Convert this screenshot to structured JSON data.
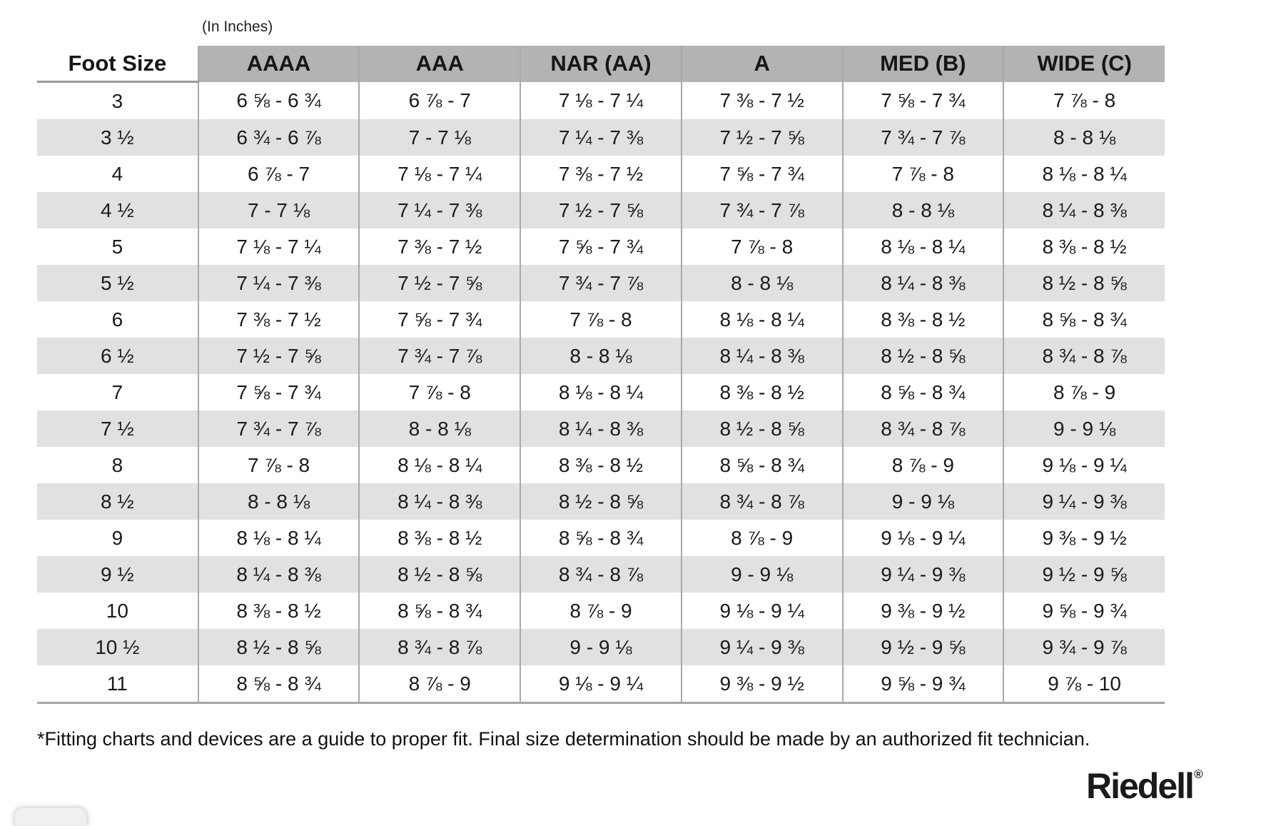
{
  "page": {
    "units_label": "(In Inches)",
    "footnote": "*Fitting charts and devices are a guide to proper fit. Final size determination should be made by an authorized fit technician.",
    "brand": {
      "name": "Riedell",
      "registered_mark": "®"
    }
  },
  "colors": {
    "header_bg": "#b3b3b3",
    "stripe_bg": "#e1e1e1",
    "column_border": "#a9a9a9",
    "rule": "#9a9a9a",
    "text": "#1a1a1a"
  },
  "table": {
    "columns": [
      "Foot Size",
      "AAAA",
      "AAA",
      "NAR (AA)",
      "A",
      "MED (B)",
      "WIDE (C)"
    ],
    "rows": [
      {
        "size": "3",
        "values": [
          "6 ⅝ - 6 ¾",
          "6 ⅞ - 7",
          "7 ⅛ - 7 ¼",
          "7 ⅜ - 7 ½",
          "7 ⅝ - 7 ¾",
          "7 ⅞ - 8"
        ]
      },
      {
        "size": "3 ½",
        "values": [
          "6 ¾ - 6 ⅞",
          "7 - 7 ⅛",
          "7 ¼ - 7 ⅜",
          "7 ½ - 7 ⅝",
          "7 ¾ - 7 ⅞",
          "8 - 8 ⅛"
        ]
      },
      {
        "size": "4",
        "values": [
          "6 ⅞ - 7",
          "7 ⅛ - 7 ¼",
          "7 ⅜ - 7 ½",
          "7 ⅝ - 7 ¾",
          "7 ⅞ - 8",
          "8 ⅛ - 8 ¼"
        ]
      },
      {
        "size": "4 ½",
        "values": [
          "7 - 7 ⅛",
          "7 ¼ - 7 ⅜",
          "7 ½ - 7 ⅝",
          "7 ¾ - 7 ⅞",
          "8 - 8 ⅛",
          "8 ¼ - 8 ⅜"
        ]
      },
      {
        "size": "5",
        "values": [
          "7 ⅛ - 7 ¼",
          "7 ⅜ - 7 ½",
          "7 ⅝ - 7 ¾",
          "7 ⅞ - 8",
          "8 ⅛ - 8 ¼",
          "8 ⅜ - 8 ½"
        ]
      },
      {
        "size": "5 ½",
        "values": [
          "7 ¼ - 7 ⅜",
          "7 ½ - 7 ⅝",
          "7 ¾ - 7 ⅞",
          "8 - 8 ⅛",
          "8 ¼ - 8 ⅜",
          "8 ½ - 8 ⅝"
        ]
      },
      {
        "size": "6",
        "values": [
          "7 ⅜ - 7 ½",
          "7 ⅝ - 7 ¾",
          "7 ⅞ - 8",
          "8 ⅛ - 8 ¼",
          "8 ⅜ - 8 ½",
          "8 ⅝ - 8 ¾"
        ]
      },
      {
        "size": "6 ½",
        "values": [
          "7 ½ - 7 ⅝",
          "7 ¾ - 7 ⅞",
          "8 - 8 ⅛",
          "8 ¼ - 8 ⅜",
          "8 ½ - 8 ⅝",
          "8 ¾ - 8 ⅞"
        ]
      },
      {
        "size": "7",
        "values": [
          "7 ⅝ - 7 ¾",
          "7 ⅞ - 8",
          "8 ⅛ - 8 ¼",
          "8 ⅜ - 8 ½",
          "8 ⅝ - 8 ¾",
          "8 ⅞ - 9"
        ]
      },
      {
        "size": "7 ½",
        "values": [
          "7 ¾ - 7 ⅞",
          "8 - 8 ⅛",
          "8 ¼ - 8 ⅜",
          "8 ½ - 8 ⅝",
          "8 ¾ - 8 ⅞",
          "9 - 9 ⅛"
        ]
      },
      {
        "size": "8",
        "values": [
          "7 ⅞ - 8",
          "8 ⅛ - 8 ¼",
          "8 ⅜ - 8 ½",
          "8 ⅝ - 8 ¾",
          "8 ⅞ - 9",
          "9 ⅛ - 9 ¼"
        ]
      },
      {
        "size": "8 ½",
        "values": [
          "8 - 8 ⅛",
          "8 ¼ - 8 ⅜",
          "8 ½ - 8 ⅝",
          "8 ¾ - 8 ⅞",
          "9 - 9 ⅛",
          "9 ¼ - 9 ⅜"
        ]
      },
      {
        "size": "9",
        "values": [
          "8 ⅛ - 8 ¼",
          "8 ⅜ - 8 ½",
          "8 ⅝ - 8 ¾",
          "8 ⅞ - 9",
          "9 ⅛ - 9 ¼",
          "9 ⅜ - 9 ½"
        ]
      },
      {
        "size": "9 ½",
        "values": [
          "8 ¼ - 8 ⅜",
          "8 ½ - 8 ⅝",
          "8 ¾ - 8 ⅞",
          "9 - 9 ⅛",
          "9 ¼ - 9 ⅜",
          "9 ½ - 9 ⅝"
        ]
      },
      {
        "size": "10",
        "values": [
          "8 ⅜ - 8 ½",
          "8 ⅝ - 8 ¾",
          "8 ⅞ - 9",
          "9 ⅛ - 9 ¼",
          "9 ⅜ - 9 ½",
          "9 ⅝ - 9 ¾"
        ]
      },
      {
        "size": "10 ½",
        "values": [
          "8 ½ - 8 ⅝",
          "8 ¾ - 8 ⅞",
          "9 - 9 ⅛",
          "9 ¼ - 9 ⅜",
          "9 ½ - 9 ⅝",
          "9 ¾ - 9 ⅞"
        ]
      },
      {
        "size": "11",
        "values": [
          "8 ⅝ - 8 ¾",
          "8 ⅞ - 9",
          "9 ⅛ - 9 ¼",
          "9 ⅜ - 9 ½",
          "9 ⅝ - 9 ¾",
          "9 ⅞ - 10"
        ]
      }
    ]
  }
}
